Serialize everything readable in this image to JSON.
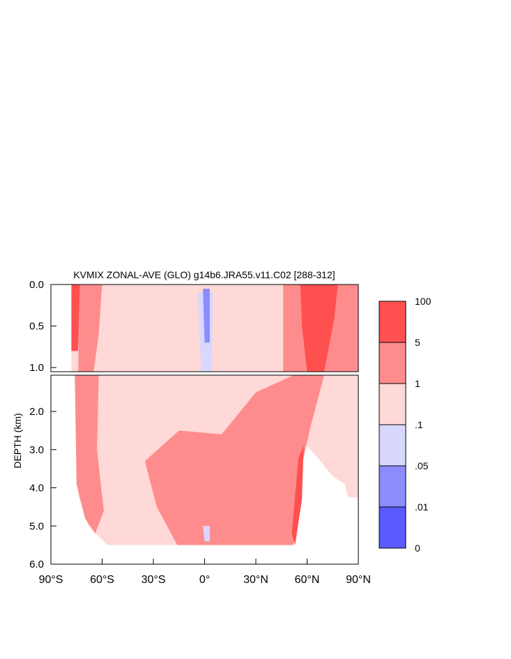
{
  "chart_data": {
    "type": "heatmap",
    "title": "KVMIX ZONAL-AVE (GLO) g14b6.JRA55.v11.C02 [288-312]",
    "xlabel": "",
    "ylabel": "DEPTH (km)",
    "xlim": [
      -90,
      90
    ],
    "upper_panel": {
      "ylim": [
        0,
        1.05
      ],
      "yticks": [
        0.0,
        0.5,
        1.0
      ],
      "ytick_labels": [
        "0.0",
        "0.5",
        "1.0"
      ]
    },
    "lower_panel": {
      "ylim": [
        1.05,
        6.0
      ],
      "yticks": [
        2.0,
        3.0,
        4.0,
        5.0,
        6.0
      ],
      "ytick_labels": [
        "2.0",
        "3.0",
        "4.0",
        "5.0",
        "6.0"
      ]
    },
    "xticks": [
      -90,
      -60,
      -30,
      0,
      30,
      60,
      90
    ],
    "xtick_labels": [
      "90°S",
      "60°S",
      "30°S",
      "0°",
      "30°N",
      "60°N",
      "90°N"
    ],
    "colorbar": {
      "levels": [
        "100",
        "5",
        "1",
        ".1",
        ".05",
        ".01",
        "0"
      ],
      "colors": [
        "#ff5050",
        "#ff8c8c",
        "#ffd8d8",
        "#d8d8ff",
        "#8c8cff",
        "#5a5aff"
      ]
    },
    "regions": [
      {
        "name": "upper-background",
        "class": "0.1-1",
        "color": "#ffd8d8",
        "boundary": [
          [
            -78,
            0
          ],
          [
            90,
            0
          ],
          [
            90,
            1.05
          ],
          [
            -78,
            1.05
          ]
        ]
      },
      {
        "name": "upper-antarctic-strip",
        "class": "5-100",
        "color": "#ff5050",
        "boundary": [
          [
            -78,
            0
          ],
          [
            -73,
            0
          ],
          [
            -74,
            0.8
          ],
          [
            -78,
            0.8
          ]
        ]
      },
      {
        "name": "upper-southern-band",
        "class": "1-5",
        "color": "#ff8c8c",
        "boundary": [
          [
            -73,
            0
          ],
          [
            -60,
            0
          ],
          [
            -62,
            0.6
          ],
          [
            -65,
            1.05
          ],
          [
            -74,
            1.05
          ]
        ]
      },
      {
        "name": "upper-northern-band",
        "class": "1-5",
        "color": "#ff8c8c",
        "boundary": [
          [
            46,
            0
          ],
          [
            90,
            0
          ],
          [
            90,
            1.05
          ],
          [
            46,
            1.05
          ]
        ]
      },
      {
        "name": "upper-northern-core",
        "class": "5-100",
        "color": "#ff5050",
        "boundary": [
          [
            56,
            0
          ],
          [
            78,
            0
          ],
          [
            76,
            0.4
          ],
          [
            70,
            1.05
          ],
          [
            60,
            1.05
          ],
          [
            57,
            0.5
          ]
        ]
      },
      {
        "name": "upper-equatorial",
        "class": "0.05-0.1",
        "color": "#d8d8ff",
        "boundary": [
          [
            -4,
            0.1
          ],
          [
            5,
            0.1
          ],
          [
            4,
            1.05
          ],
          [
            -2,
            1.05
          ]
        ]
      },
      {
        "name": "upper-equatorial-core",
        "class": "0.01-0.05",
        "color": "#8c8cff",
        "boundary": [
          [
            -1,
            0.05
          ],
          [
            3,
            0.05
          ],
          [
            3,
            0.7
          ],
          [
            0,
            0.7
          ]
        ]
      },
      {
        "name": "lower-background",
        "class": "0.1-1",
        "color": "#ffd8d8",
        "boundary": [
          [
            -76,
            1.05
          ],
          [
            90,
            1.05
          ],
          [
            90,
            4.25
          ],
          [
            84,
            4.25
          ],
          [
            82,
            3.9
          ],
          [
            75,
            3.7
          ],
          [
            66,
            3.2
          ],
          [
            58,
            2.8
          ],
          [
            52,
            5.5
          ],
          [
            -57,
            5.5
          ],
          [
            -68,
            5.0
          ],
          [
            -74,
            4.2
          ]
        ]
      },
      {
        "name": "lower-southern-band",
        "class": "1-5",
        "color": "#ff8c8c",
        "boundary": [
          [
            -76,
            1.05
          ],
          [
            -62,
            1.05
          ],
          [
            -63,
            3.0
          ],
          [
            -59,
            4.6
          ],
          [
            -64,
            5.2
          ],
          [
            -70,
            4.8
          ],
          [
            -75,
            3.9
          ]
        ]
      },
      {
        "name": "lower-central-band",
        "class": "1-5",
        "color": "#ff8c8c",
        "boundary": [
          [
            -35,
            3.3
          ],
          [
            -15,
            2.5
          ],
          [
            10,
            2.6
          ],
          [
            30,
            1.5
          ],
          [
            52,
            1.05
          ],
          [
            70,
            1.05
          ],
          [
            62,
            2.4
          ],
          [
            56,
            3.6
          ],
          [
            52,
            5.5
          ],
          [
            -16,
            5.5
          ],
          [
            -28,
            4.5
          ]
        ]
      },
      {
        "name": "lower-northern-core",
        "class": "5-100",
        "color": "#ff5050",
        "boundary": [
          [
            55,
            3.2
          ],
          [
            58,
            2.9
          ],
          [
            57,
            4.3
          ],
          [
            53,
            5.5
          ],
          [
            51,
            5.2
          ]
        ]
      },
      {
        "name": "lower-equatorial",
        "class": "0.05-0.1",
        "color": "#d8d8ff",
        "boundary": [
          [
            -1,
            5.0
          ],
          [
            3,
            5.0
          ],
          [
            3,
            5.4
          ],
          [
            0,
            5.4
          ]
        ]
      }
    ]
  }
}
